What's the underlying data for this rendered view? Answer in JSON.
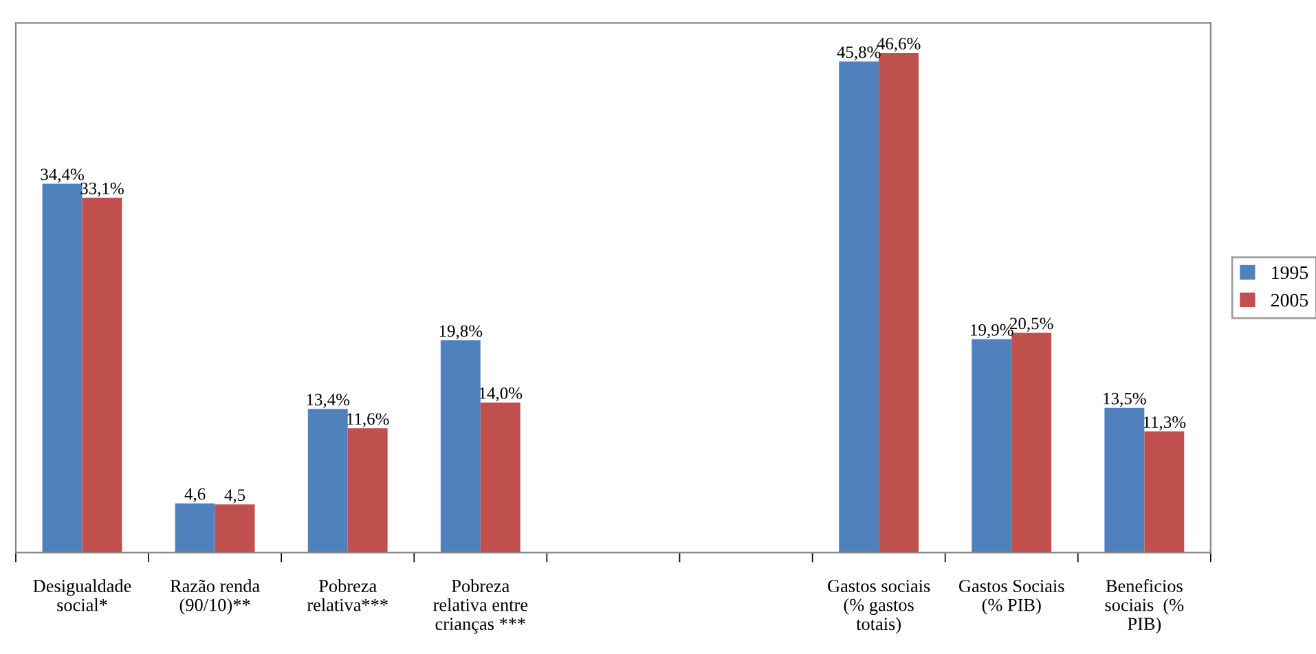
{
  "chart_data": {
    "type": "bar",
    "categories": [
      "Desigualdade\nsocial*",
      "Razão renda\n(90/10)**",
      "Pobreza\nrelativa***",
      "Pobreza\nrelativa entre\ncrianças ***",
      null,
      null,
      "Gastos sociais\n(% gastos\ntotais)",
      "Gastos Sociais\n(% PIB)",
      "Beneficios\nsociais  (%\nPIB)"
    ],
    "series": [
      {
        "name": "1995",
        "color": "#4f81bd",
        "values": [
          34.4,
          4.6,
          13.4,
          19.8,
          null,
          null,
          45.8,
          19.9,
          13.5
        ],
        "value_labels": [
          "34,4%",
          "4,6",
          "13,4%",
          "19,8%",
          null,
          null,
          "45,8%",
          "19,9%",
          "13,5%"
        ]
      },
      {
        "name": "2005",
        "color": "#c0504d",
        "values": [
          33.1,
          4.5,
          11.6,
          14.0,
          null,
          null,
          46.6,
          20.5,
          11.3
        ],
        "value_labels": [
          "33,1%",
          "4,5",
          "11,6%",
          "14,0%",
          null,
          null,
          "46,6%",
          "20,5%",
          "11,3%"
        ]
      }
    ],
    "legend": "right",
    "grid": false
  }
}
